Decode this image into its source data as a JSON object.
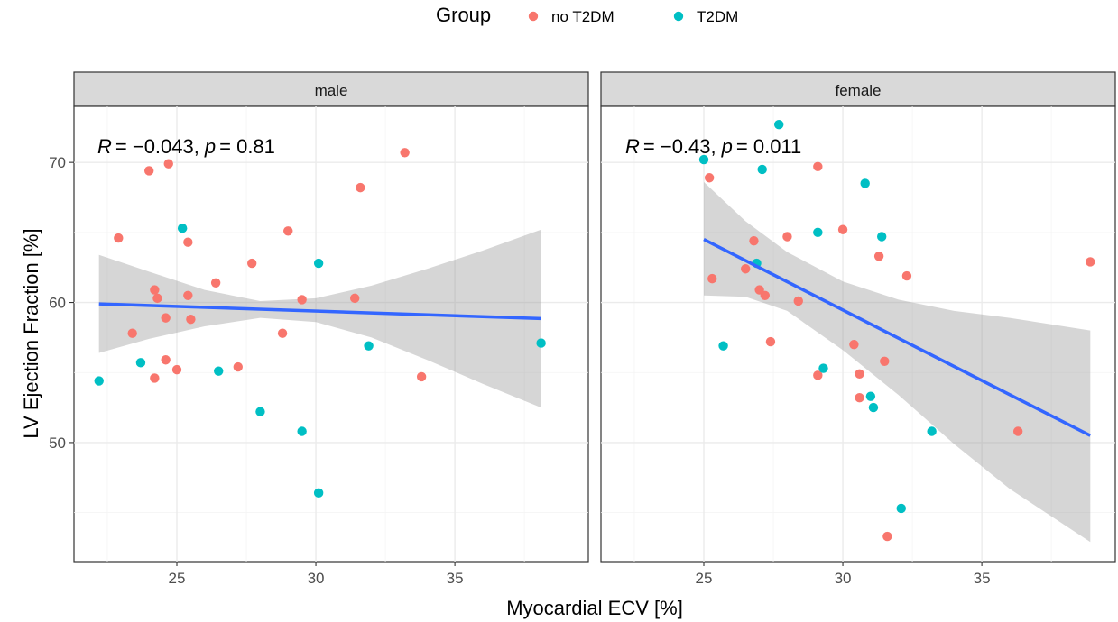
{
  "chart_data": {
    "type": "scatter",
    "xlabel": "Myocardial ECV [%]",
    "ylabel": "LV Ejection Fraction [%]",
    "legend": {
      "title": "Group",
      "position": "top",
      "entries": [
        {
          "name": "no T2DM",
          "color": "#F8766D"
        },
        {
          "name": "T2DM",
          "color": "#00BFC4"
        }
      ]
    },
    "grid": true,
    "xlim": [
      21.3,
      39.8
    ],
    "ylim": [
      41.5,
      74.0
    ],
    "x_ticks": [
      25,
      30,
      35
    ],
    "y_ticks": [
      50,
      60,
      70
    ],
    "fit_color": "#3366FF",
    "ci_color": "#999999",
    "panels": [
      {
        "strip": "male",
        "annotation": {
          "r_label": "R",
          "r_value": "= −0.043,",
          "p_label": "p",
          "p_value": "= 0.81"
        },
        "fit": {
          "x": [
            22.2,
            38.1
          ],
          "y": [
            59.9,
            58.85
          ]
        },
        "ci": {
          "x": [
            22.2,
            24.0,
            26.0,
            28.0,
            30.0,
            32.0,
            34.0,
            36.0,
            38.1
          ],
          "upper": [
            63.4,
            62.2,
            60.9,
            60.1,
            60.3,
            61.2,
            62.4,
            63.7,
            65.2
          ],
          "lower": [
            56.4,
            57.4,
            58.3,
            58.9,
            58.6,
            57.5,
            55.9,
            54.2,
            52.5
          ]
        },
        "series": [
          {
            "name": "no T2DM",
            "points": [
              [
                22.9,
                64.6
              ],
              [
                24.0,
                69.4
              ],
              [
                24.7,
                69.9
              ],
              [
                24.2,
                60.9
              ],
              [
                24.3,
                60.3
              ],
              [
                23.4,
                57.8
              ],
              [
                24.6,
                58.9
              ],
              [
                25.4,
                60.5
              ],
              [
                25.5,
                58.8
              ],
              [
                25.4,
                64.3
              ],
              [
                26.4,
                61.4
              ],
              [
                27.7,
                62.8
              ],
              [
                24.6,
                55.9
              ],
              [
                25.0,
                55.2
              ],
              [
                24.2,
                54.6
              ],
              [
                27.2,
                55.4
              ],
              [
                28.8,
                57.8
              ],
              [
                29.0,
                65.1
              ],
              [
                29.5,
                60.2
              ],
              [
                31.4,
                60.3
              ],
              [
                31.6,
                68.2
              ],
              [
                33.2,
                70.7
              ],
              [
                33.8,
                54.7
              ]
            ]
          },
          {
            "name": "T2DM",
            "points": [
              [
                22.2,
                54.4
              ],
              [
                23.7,
                55.7
              ],
              [
                25.2,
                65.3
              ],
              [
                26.5,
                55.1
              ],
              [
                28.0,
                52.2
              ],
              [
                29.5,
                50.8
              ],
              [
                30.1,
                62.8
              ],
              [
                30.1,
                46.4
              ],
              [
                31.9,
                56.9
              ],
              [
                38.1,
                57.1
              ]
            ]
          }
        ]
      },
      {
        "strip": "female",
        "annotation": {
          "r_label": "R",
          "r_value": "= −0.43,",
          "p_label": "p",
          "p_value": "= 0.011"
        },
        "fit": {
          "x": [
            25.0,
            38.9
          ],
          "y": [
            64.5,
            50.5
          ]
        },
        "ci": {
          "x": [
            25.0,
            26.5,
            28.0,
            30.0,
            32.0,
            34.0,
            36.0,
            38.9
          ],
          "upper": [
            68.6,
            65.8,
            63.6,
            61.5,
            60.2,
            59.4,
            58.9,
            58.0
          ],
          "lower": [
            60.5,
            60.4,
            59.4,
            56.6,
            53.4,
            49.9,
            46.7,
            42.9
          ]
        },
        "series": [
          {
            "name": "no T2DM",
            "points": [
              [
                25.2,
                68.9
              ],
              [
                25.3,
                61.7
              ],
              [
                26.5,
                62.4
              ],
              [
                26.8,
                64.4
              ],
              [
                27.0,
                60.9
              ],
              [
                27.2,
                60.5
              ],
              [
                28.0,
                64.7
              ],
              [
                28.4,
                60.1
              ],
              [
                29.1,
                69.7
              ],
              [
                30.0,
                65.2
              ],
              [
                27.4,
                57.2
              ],
              [
                30.4,
                57.0
              ],
              [
                31.3,
                63.3
              ],
              [
                32.3,
                61.9
              ],
              [
                29.1,
                54.8
              ],
              [
                30.6,
                54.9
              ],
              [
                30.6,
                53.2
              ],
              [
                31.5,
                55.8
              ],
              [
                36.3,
                50.8
              ],
              [
                38.9,
                62.9
              ],
              [
                31.6,
                43.3
              ]
            ]
          },
          {
            "name": "T2DM",
            "points": [
              [
                25.0,
                70.2
              ],
              [
                27.1,
                69.5
              ],
              [
                27.7,
                72.7
              ],
              [
                26.9,
                62.8
              ],
              [
                25.7,
                56.9
              ],
              [
                29.1,
                65.0
              ],
              [
                30.8,
                68.5
              ],
              [
                31.4,
                64.7
              ],
              [
                29.3,
                55.3
              ],
              [
                31.0,
                53.3
              ],
              [
                31.1,
                52.5
              ],
              [
                33.2,
                50.8
              ],
              [
                32.1,
                45.3
              ]
            ]
          }
        ]
      }
    ]
  }
}
